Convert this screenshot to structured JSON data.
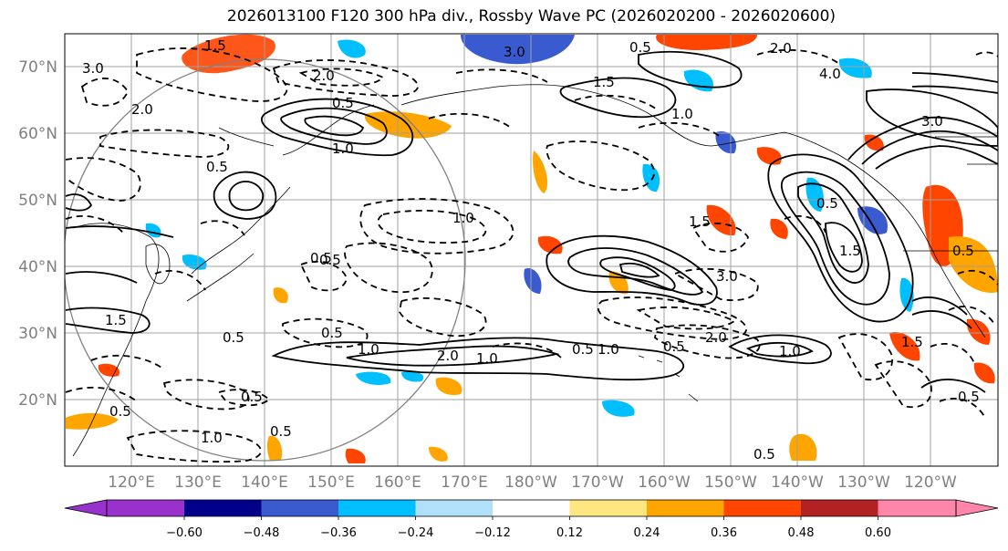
{
  "title": "2026013100 F120 300 hPa div., Rossby Wave PC (2026020200 - 2026020600)",
  "map": {
    "lon_labels": [
      "120°E",
      "130°E",
      "140°E",
      "150°E",
      "160°E",
      "170°E",
      "180°W",
      "170°W",
      "160°W",
      "150°W",
      "140°W",
      "130°W",
      "120°W"
    ],
    "lat_labels": [
      "70°N",
      "60°N",
      "50°N",
      "40°N",
      "30°N",
      "20°N"
    ],
    "grid": true,
    "circle_color": "#808080"
  },
  "colorbar": {
    "colors": [
      "#9932cc",
      "#00008b",
      "#3a5bd0",
      "#00bfff",
      "#b0e0fa",
      "#ffffff",
      "#ffe680",
      "#ffa500",
      "#ff4500",
      "#b22222",
      "#ff85aa"
    ],
    "tick_labels": [
      "−0.60",
      "−0.48",
      "−0.36",
      "−0.24",
      "−0.12",
      "0.12",
      "0.24",
      "0.36",
      "0.48",
      "0.60"
    ],
    "extend": "both"
  },
  "contour_labels": [
    "1.5",
    "3.0",
    "3.0",
    "2.0",
    "0.5",
    "2.0",
    "4.0",
    "2.0",
    "2.0",
    "0.5",
    "1.0",
    "1.0",
    "0.5",
    "1.5",
    "0.5",
    "1.0",
    "1.0",
    "0.5",
    "1.5",
    "3.0",
    "0.5",
    "1.5",
    "2.0",
    "0.5",
    "1.0",
    "0.5",
    "0.5",
    "1.0",
    "0.5",
    "1.0",
    "1.0",
    "0.5",
    "0.5",
    "0.5",
    "0.5",
    "1.5",
    "3.0",
    "1.5",
    "0.5",
    "0.5"
  ]
}
